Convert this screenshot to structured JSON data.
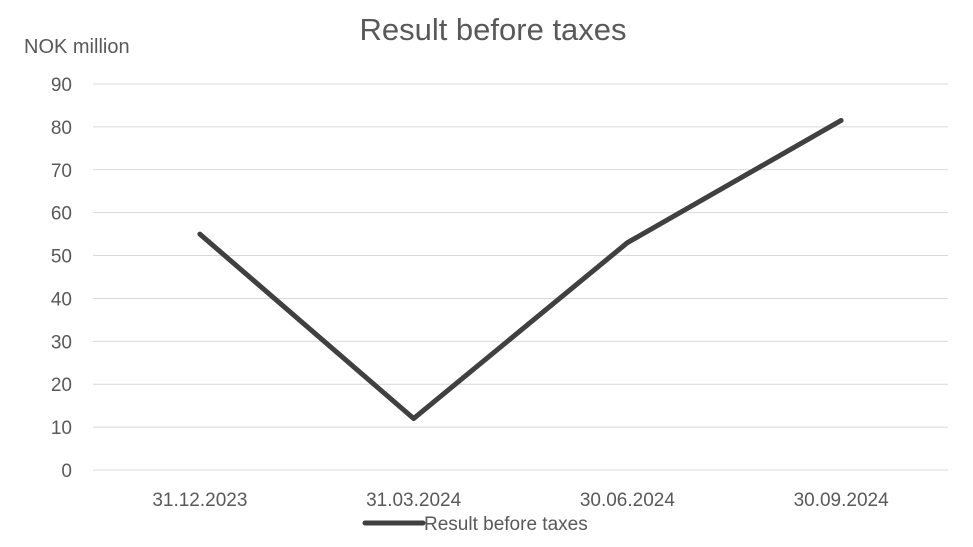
{
  "chart_data": {
    "type": "line",
    "title": "Result before taxes",
    "ylabel": "NOK million",
    "xlabel": "",
    "categories": [
      "31.12.2023",
      "31.03.2024",
      "30.06.2024",
      "30.09.2024"
    ],
    "series": [
      {
        "name": "Result before taxes",
        "values": [
          55,
          12,
          53,
          81.5
        ],
        "color": "#404040"
      }
    ],
    "ylim": [
      0,
      90
    ],
    "yticks": [
      0,
      10,
      20,
      30,
      40,
      50,
      60,
      70,
      80,
      90
    ],
    "grid": true,
    "legend": "bottom",
    "colors": {
      "gridline": "#d9d9d9",
      "text": "#595959"
    }
  }
}
